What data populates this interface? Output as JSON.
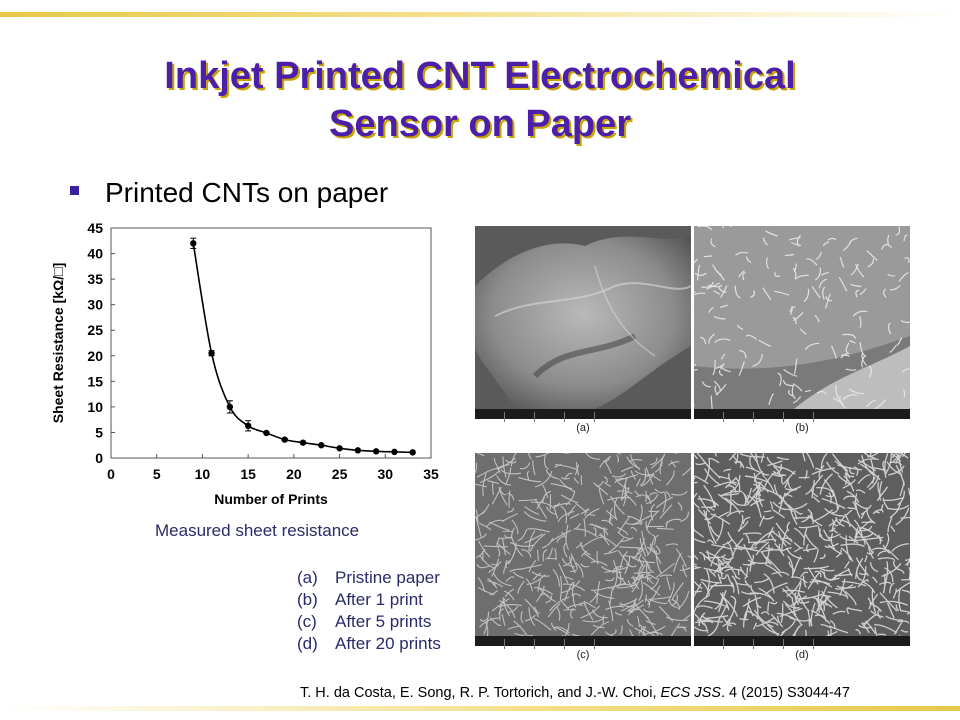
{
  "slide": {
    "title_line1": "Inkjet Printed CNT Electrochemical",
    "title_line2": "Sensor on Paper",
    "bullet": "Printed CNTs on paper",
    "caption": "Measured sheet resistance",
    "legend": [
      {
        "label": "(a)",
        "text": "Pristine paper"
      },
      {
        "label": "(b)",
        "text": "After 1 print"
      },
      {
        "label": "(c)",
        "text": "After 5 prints"
      },
      {
        "label": "(d)",
        "text": "After 20 prints"
      }
    ],
    "images": [
      {
        "label": "(a)"
      },
      {
        "label": "(b)"
      },
      {
        "label": "(c)"
      },
      {
        "label": "(d)"
      }
    ],
    "citation_pre": "T. H. da Costa, E. Song, R. P. Tortorich, and J.-W. Choi, ",
    "citation_journal": "ECS JSS",
    "citation_post": ". 4 (2015) S3044-47",
    "colors": {
      "title": "#4b1fa8",
      "title_shadow": "#c9a400",
      "bullet": "#3a1f9e",
      "caption": "#2a2a6a"
    }
  },
  "chart_data": {
    "type": "line",
    "xlabel": "Number of Prints",
    "ylabel": "Sheet Resistance [kΩ/□]",
    "xlim": [
      0,
      35
    ],
    "ylim": [
      0,
      45
    ],
    "xticks": [
      0,
      5,
      10,
      15,
      20,
      25,
      30,
      35
    ],
    "yticks": [
      0,
      5,
      10,
      15,
      20,
      25,
      30,
      35,
      40,
      45
    ],
    "grid": false,
    "x": [
      9,
      11,
      13,
      15,
      17,
      19,
      21,
      23,
      25,
      27,
      29,
      31,
      33
    ],
    "y": [
      42,
      20.5,
      10,
      6.3,
      4.9,
      3.6,
      3.0,
      2.5,
      1.9,
      1.5,
      1.3,
      1.2,
      1.1
    ],
    "errors": [
      1.0,
      0.5,
      1.2,
      1.0,
      0.2,
      0.2,
      0.1,
      0.1,
      0.1,
      0.1,
      0.1,
      0.1,
      0.1
    ]
  }
}
